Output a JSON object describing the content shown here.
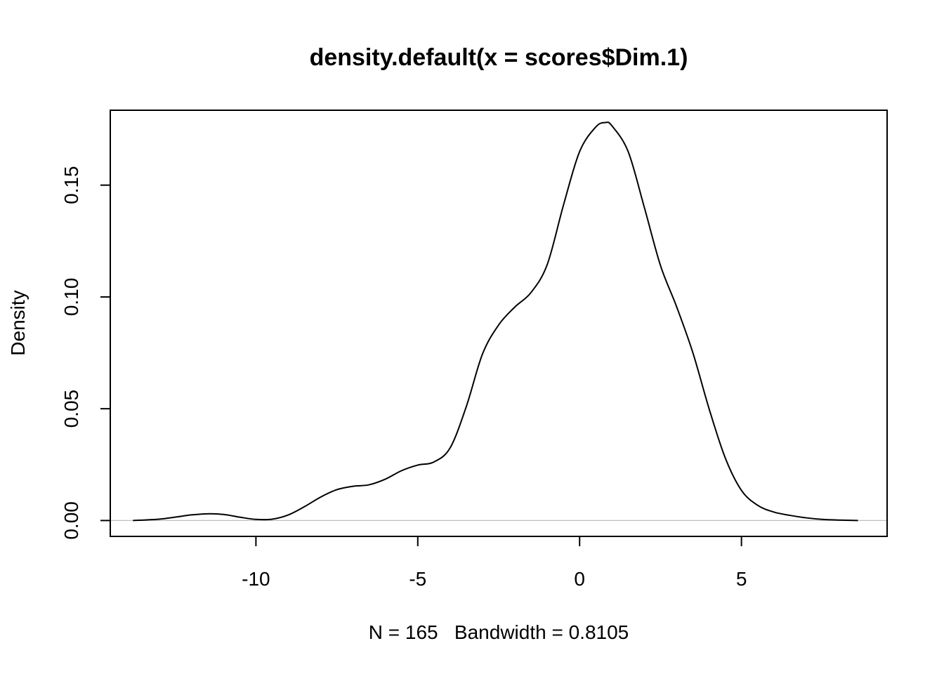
{
  "chart_data": {
    "type": "line",
    "title": "density.default(x = scores$Dim.1)",
    "xlabel": "N = 165   Bandwidth = 0.8105",
    "ylabel": "Density",
    "xlim": [
      -14.5,
      9.5
    ],
    "ylim": [
      -0.0071,
      0.1835
    ],
    "x_ticks": [
      -10,
      -5,
      0,
      5
    ],
    "x_tick_labels": [
      "-10",
      "-5",
      "0",
      "5"
    ],
    "y_ticks": [
      0.0,
      0.05,
      0.1,
      0.15
    ],
    "y_tick_labels": [
      "0.00",
      "0.05",
      "0.10",
      "0.15"
    ],
    "baseline": 0,
    "grid": false,
    "colors": {
      "line": "#000000",
      "baseline": "#bebebe",
      "frame": "#000000"
    },
    "series": [
      {
        "x": [
          -13.8,
          -13.0,
          -12.5,
          -12.0,
          -11.5,
          -11.0,
          -10.5,
          -10.0,
          -9.5,
          -9.0,
          -8.5,
          -8.0,
          -7.5,
          -7.0,
          -6.5,
          -6.0,
          -5.5,
          -5.0,
          -4.5,
          -4.0,
          -3.5,
          -3.0,
          -2.5,
          -2.0,
          -1.5,
          -1.0,
          -0.5,
          0.0,
          0.5,
          0.8,
          1.0,
          1.5,
          2.0,
          2.5,
          3.0,
          3.5,
          4.0,
          4.5,
          5.0,
          5.5,
          6.0,
          6.5,
          7.0,
          7.5,
          8.0,
          8.6
        ],
        "y": [
          0.0,
          0.0006,
          0.0015,
          0.0025,
          0.003,
          0.0027,
          0.0015,
          0.0005,
          0.0006,
          0.0025,
          0.0062,
          0.0105,
          0.0138,
          0.0153,
          0.016,
          0.0185,
          0.0223,
          0.0248,
          0.0262,
          0.0325,
          0.051,
          0.0745,
          0.0875,
          0.0955,
          0.102,
          0.1145,
          0.141,
          0.165,
          0.176,
          0.178,
          0.1765,
          0.165,
          0.14,
          0.114,
          0.0955,
          0.075,
          0.05,
          0.028,
          0.0135,
          0.0068,
          0.0038,
          0.0023,
          0.0012,
          0.0005,
          0.0002,
          0.0
        ]
      }
    ]
  }
}
